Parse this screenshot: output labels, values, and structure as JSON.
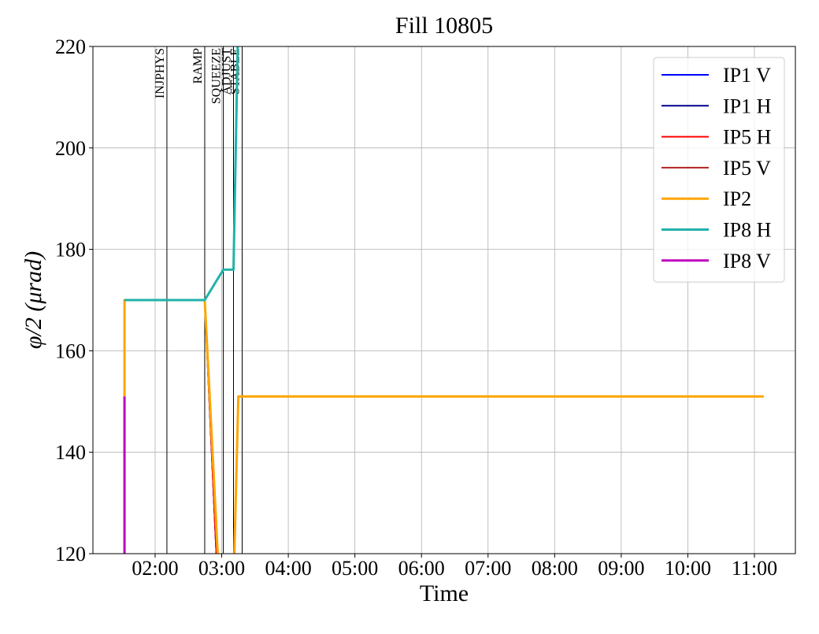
{
  "chart_data": {
    "type": "line",
    "title": "Fill 10805",
    "xlabel": "Time",
    "ylabel": "φ/2 (μrad)",
    "xlim": [
      1.066,
      11.615
    ],
    "ylim": [
      120,
      220
    ],
    "xticks": [
      {
        "value": 2,
        "label": "02:00"
      },
      {
        "value": 3,
        "label": "03:00"
      },
      {
        "value": 4,
        "label": "04:00"
      },
      {
        "value": 5,
        "label": "05:00"
      },
      {
        "value": 6,
        "label": "06:00"
      },
      {
        "value": 7,
        "label": "07:00"
      },
      {
        "value": 8,
        "label": "08:00"
      },
      {
        "value": 9,
        "label": "09:00"
      },
      {
        "value": 10,
        "label": "10:00"
      },
      {
        "value": 11,
        "label": "11:00"
      }
    ],
    "yticks": [
      120,
      140,
      160,
      180,
      200,
      220
    ],
    "grid": true,
    "legend": "upper right",
    "phases": [
      {
        "label": "INJPHYS",
        "x": 2.177
      },
      {
        "label": "RAMP",
        "x": 2.745
      },
      {
        "label": "SQUEEZE",
        "x": 3.024
      },
      {
        "label": "ADJUST",
        "x": 3.177
      },
      {
        "label": "STABLE",
        "x": 3.307
      }
    ],
    "series": [
      {
        "name": "IP1 V",
        "color": "#0000ff",
        "width": 2,
        "x": [
          2.745,
          2.92
        ],
        "values": [
          170,
          120
        ]
      },
      {
        "name": "IP1 H",
        "color": "#00008b",
        "width": 2,
        "x": [
          2.745,
          2.92
        ],
        "values": [
          170,
          120
        ]
      },
      {
        "name": "IP5 H",
        "color": "#ff0000",
        "width": 2,
        "x": [
          2.745,
          2.92
        ],
        "values": [
          170,
          120
        ]
      },
      {
        "name": "IP5 V",
        "color": "#b22222",
        "width": 2,
        "x": [
          1.54,
          1.54
        ],
        "values": [
          120,
          151
        ]
      },
      {
        "name": "IP2",
        "color": "#ffa500",
        "width": 3,
        "x": [
          1.54,
          1.54,
          2.745,
          2.94,
          null,
          3.19,
          3.25,
          11.14
        ],
        "values": [
          151,
          170,
          170,
          120,
          null,
          120,
          151,
          151
        ]
      },
      {
        "name": "IP8 H",
        "color": "#20b2aa",
        "width": 3,
        "x": [
          1.54,
          2.745,
          3.024,
          3.177,
          3.24
        ],
        "values": [
          170,
          170,
          176,
          176,
          220
        ]
      },
      {
        "name": "IP8 V",
        "color": "#c000c0",
        "width": 3,
        "x": [
          1.54,
          1.54
        ],
        "values": [
          120,
          151
        ]
      }
    ]
  }
}
